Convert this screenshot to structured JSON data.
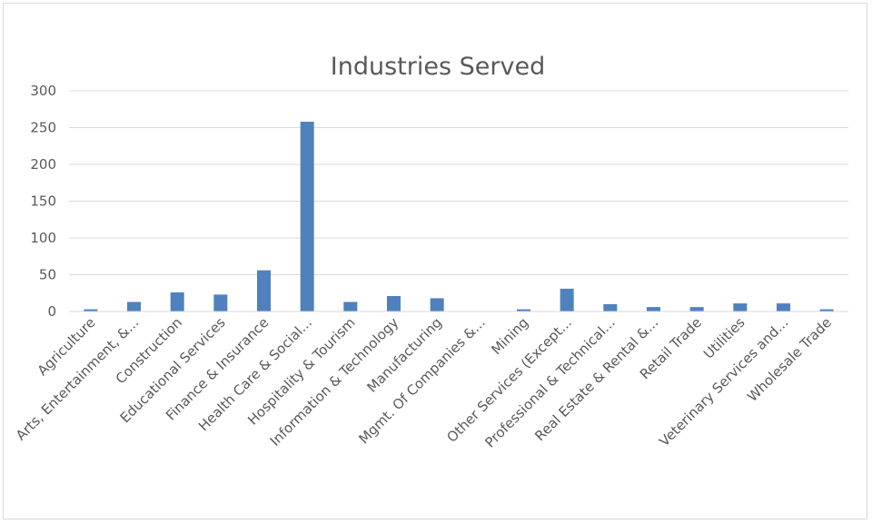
{
  "chart_data": {
    "type": "bar",
    "title": "Industries Served",
    "xlabel": "",
    "ylabel": "",
    "ylim": [
      0,
      300
    ],
    "yticks": [
      0,
      50,
      100,
      150,
      200,
      250,
      300
    ],
    "grid": true,
    "legend": "none",
    "bar_color": "#4f81bd",
    "categories": [
      "Agriculture",
      "Arts, Entertainment, &...",
      "Construction",
      "Educational Services",
      "Finance & Insurance",
      "Health Care & Social...",
      "Hospitality & Tourism",
      "Information & Technology",
      "Manufacturing",
      "Mgmt. Of Companies &...",
      "Mining",
      "Other Services (Except...",
      "Professional & Technical...",
      "Real Estate & Rental &...",
      "Retail Trade",
      "Utilities",
      "Veterinary Services and...",
      "Wholesale Trade"
    ],
    "values": [
      3,
      13,
      26,
      23,
      56,
      258,
      13,
      21,
      18,
      0,
      3,
      31,
      10,
      6,
      6,
      11,
      11,
      3
    ]
  }
}
